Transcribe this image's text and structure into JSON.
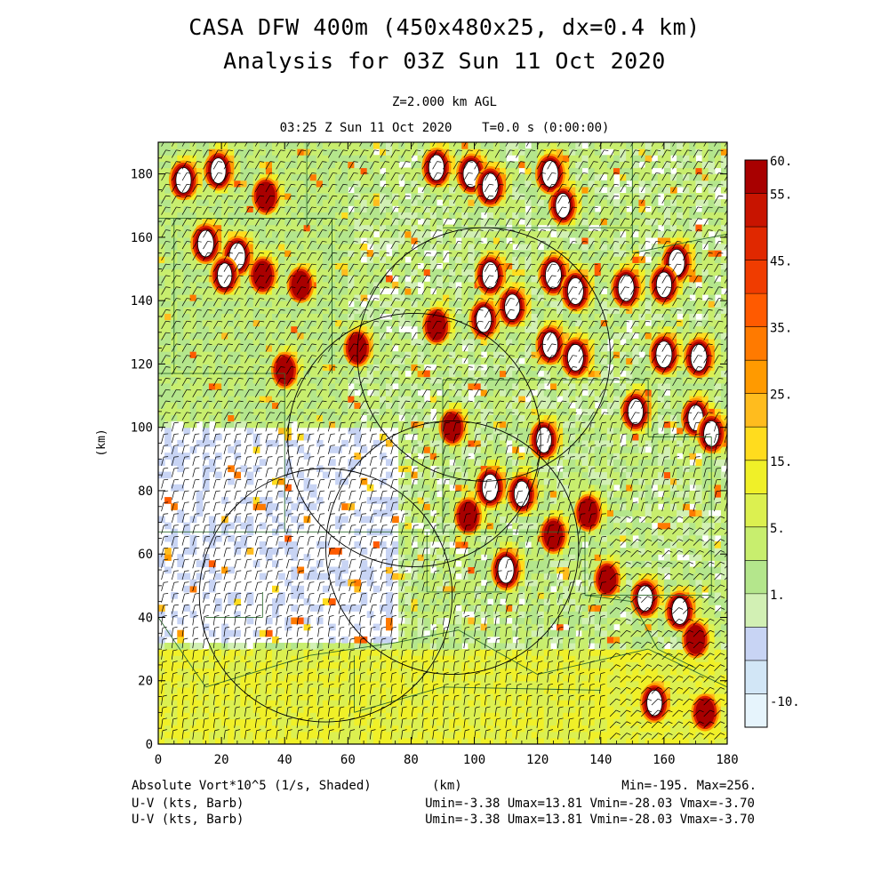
{
  "header": {
    "title_line1": "CASA DFW 400m (450x480x25, dx=0.4 km)",
    "title_line2": "Analysis for 03Z Sun 11 Oct 2020",
    "level": "Z=2.000 km AGL",
    "valid_time": "03:25 Z Sun 11 Oct 2020    T=0.0 s (0:00:00)"
  },
  "footer": {
    "field_label": "Absolute Vort*10^5 (1/s, Shaded)",
    "xunit": "(km)",
    "minmax": "Min=-195. Max=256.",
    "wind1_label": "U-V (kts, Barb)",
    "wind1_stats": "Umin=-3.38 Umax=13.81 Vmin=-28.03 Vmax=-3.70",
    "wind2_label": "U-V (kts, Barb)",
    "wind2_stats": "Umin=-3.38 Umax=13.81 Vmin=-28.03 Vmax=-3.70"
  },
  "chart_data": {
    "type": "heatmap",
    "title": "CASA DFW 400m (450x480x25, dx=0.4 km)",
    "subtitle": "Analysis for 03Z Sun 11 Oct 2020",
    "xlabel": "(km)",
    "ylabel": "(km)",
    "xlim": [
      0,
      180
    ],
    "ylim": [
      0,
      190
    ],
    "xticks": [
      "0",
      "20",
      "40",
      "60",
      "80",
      "100",
      "120",
      "140",
      "160",
      "180"
    ],
    "yticks": [
      "0",
      "20",
      "40",
      "60",
      "80",
      "100",
      "120",
      "140",
      "160",
      "180"
    ],
    "field": "Absolute Vort*10^5 (1/s, Shaded)",
    "min": -195,
    "max": 256,
    "colorbar": {
      "labels": [
        "60.",
        "55.",
        "45.",
        "35.",
        "25.",
        "15.",
        "5.",
        "1.",
        "-10."
      ],
      "label_levels": [
        60,
        55,
        45,
        35,
        25,
        15,
        5,
        1,
        -10
      ],
      "colors": [
        "#a80000",
        "#c81400",
        "#e02800",
        "#f03c00",
        "#ff5a00",
        "#ff7a00",
        "#ff9a00",
        "#ffbc1e",
        "#ffdc1e",
        "#f0f028",
        "#dcf050",
        "#c8ee6e",
        "#b4e68c",
        "#d2f0b4",
        "#c8d4f4",
        "#d2e6f6",
        "#e6f4fc"
      ]
    },
    "wind": {
      "units": "kts",
      "umin": -3.38,
      "umax": 13.81,
      "vmin": -28.03,
      "vmax": -3.7
    },
    "radar_rings": [
      {
        "center": [
          103,
          123
        ],
        "radius": 40
      },
      {
        "center": [
          81,
          96
        ],
        "radius": 40
      },
      {
        "center": [
          53,
          47
        ],
        "radius": 40
      },
      {
        "center": [
          93,
          62
        ],
        "radius": 40
      }
    ],
    "vorticity_maxima": [
      {
        "x": 99,
        "y": 180,
        "v": 60
      },
      {
        "x": 105,
        "y": 176,
        "v": 60
      },
      {
        "x": 124,
        "y": 180,
        "v": 60
      },
      {
        "x": 88,
        "y": 182,
        "v": 55
      },
      {
        "x": 19,
        "y": 181,
        "v": 55
      },
      {
        "x": 8,
        "y": 178,
        "v": 55
      },
      {
        "x": 34,
        "y": 173,
        "v": 45
      },
      {
        "x": 15,
        "y": 158,
        "v": 60
      },
      {
        "x": 25,
        "y": 154,
        "v": 60
      },
      {
        "x": 21,
        "y": 148,
        "v": 50
      },
      {
        "x": 33,
        "y": 148,
        "v": 45
      },
      {
        "x": 125,
        "y": 148,
        "v": 60
      },
      {
        "x": 132,
        "y": 143,
        "v": 60
      },
      {
        "x": 148,
        "y": 144,
        "v": 60
      },
      {
        "x": 164,
        "y": 152,
        "v": 60
      },
      {
        "x": 160,
        "y": 145,
        "v": 55
      },
      {
        "x": 105,
        "y": 148,
        "v": 60
      },
      {
        "x": 112,
        "y": 138,
        "v": 55
      },
      {
        "x": 103,
        "y": 134,
        "v": 55
      },
      {
        "x": 88,
        "y": 132,
        "v": 45
      },
      {
        "x": 124,
        "y": 126,
        "v": 55
      },
      {
        "x": 132,
        "y": 122,
        "v": 60
      },
      {
        "x": 160,
        "y": 123,
        "v": 60
      },
      {
        "x": 171,
        "y": 122,
        "v": 60
      },
      {
        "x": 170,
        "y": 103,
        "v": 55
      },
      {
        "x": 175,
        "y": 98,
        "v": 55
      },
      {
        "x": 151,
        "y": 105,
        "v": 55
      },
      {
        "x": 122,
        "y": 96,
        "v": 55
      },
      {
        "x": 105,
        "y": 81,
        "v": 60
      },
      {
        "x": 115,
        "y": 79,
        "v": 55
      },
      {
        "x": 110,
        "y": 55,
        "v": 60
      },
      {
        "x": 154,
        "y": 46,
        "v": 55
      },
      {
        "x": 165,
        "y": 42,
        "v": 60
      },
      {
        "x": 170,
        "y": 33,
        "v": 45
      },
      {
        "x": 157,
        "y": 13,
        "v": 55
      },
      {
        "x": 173,
        "y": 10,
        "v": 45
      },
      {
        "x": 125,
        "y": 66,
        "v": 45
      },
      {
        "x": 136,
        "y": 73,
        "v": 45
      },
      {
        "x": 142,
        "y": 52,
        "v": 40
      },
      {
        "x": 98,
        "y": 72,
        "v": 45
      },
      {
        "x": 93,
        "y": 100,
        "v": 40
      },
      {
        "x": 63,
        "y": 125,
        "v": 45
      },
      {
        "x": 40,
        "y": 118,
        "v": 40
      },
      {
        "x": 45,
        "y": 145,
        "v": 40
      },
      {
        "x": 128,
        "y": 170,
        "v": 50
      }
    ]
  }
}
